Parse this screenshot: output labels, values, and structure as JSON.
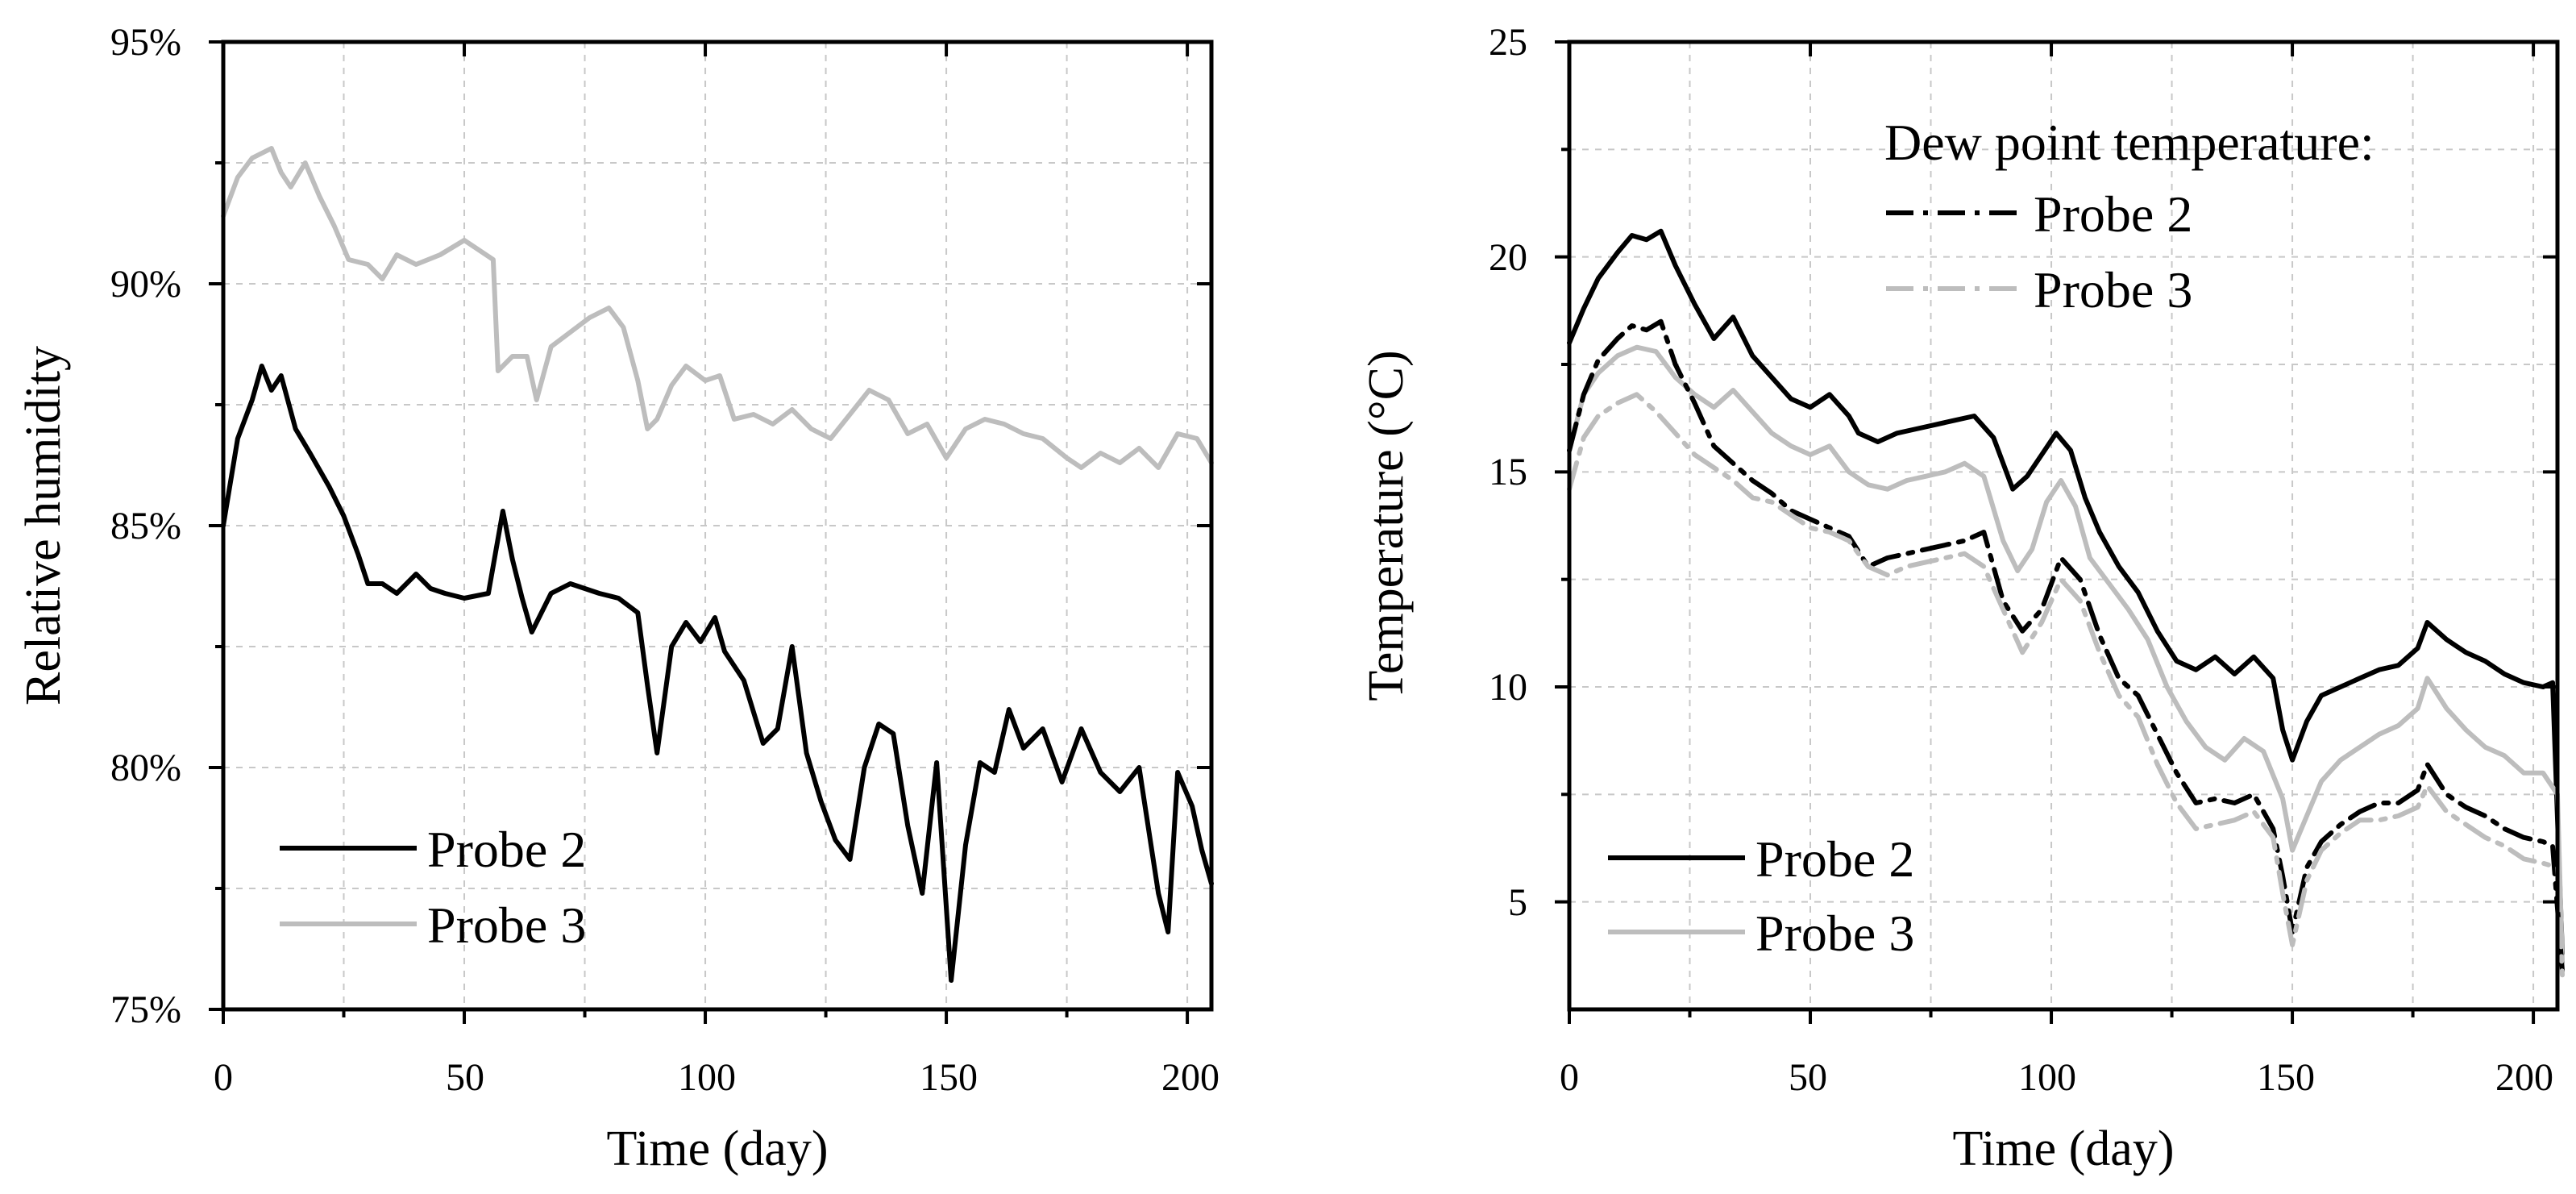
{
  "chart_data": [
    {
      "type": "line",
      "title": "",
      "xlabel": "Time (day)",
      "ylabel": "Relative humidity",
      "xlim": [
        0,
        205
      ],
      "ylim": [
        75,
        95
      ],
      "x_ticks": [
        "0",
        "50",
        "100",
        "150",
        "200"
      ],
      "y_ticks": [
        "75%",
        "80%",
        "85%",
        "90%",
        "95%"
      ],
      "grid": true,
      "legend_position": "bottom-left",
      "series": [
        {
          "name": "Probe 2",
          "color": "#000000",
          "style": "solid",
          "x": [
            0,
            3,
            6,
            8,
            10,
            12,
            15,
            18,
            22,
            25,
            28,
            30,
            33,
            36,
            40,
            43,
            46,
            50,
            55,
            58,
            60,
            62,
            64,
            68,
            72,
            78,
            82,
            86,
            88,
            90,
            93,
            96,
            99,
            102,
            104,
            108,
            112,
            115,
            118,
            121,
            124,
            127,
            130,
            133,
            136,
            139,
            142,
            145,
            148,
            151,
            154,
            157,
            160,
            163,
            166,
            170,
            174,
            178,
            182,
            186,
            190,
            194,
            196,
            198,
            201,
            203,
            205
          ],
          "y": [
            85.0,
            86.8,
            87.6,
            88.3,
            87.8,
            88.1,
            87.0,
            86.5,
            85.8,
            85.2,
            84.4,
            83.8,
            83.8,
            83.6,
            84.0,
            83.7,
            83.6,
            83.5,
            83.6,
            85.3,
            84.3,
            83.5,
            82.8,
            83.6,
            83.8,
            83.6,
            83.5,
            83.2,
            81.7,
            80.3,
            82.5,
            83.0,
            82.6,
            83.1,
            82.4,
            81.8,
            80.5,
            80.8,
            82.5,
            80.3,
            79.3,
            78.5,
            78.1,
            80.0,
            80.9,
            80.7,
            78.8,
            77.4,
            80.1,
            75.6,
            78.4,
            80.1,
            79.9,
            81.2,
            80.4,
            80.8,
            79.7,
            80.8,
            79.9,
            79.5,
            80.0,
            77.4,
            76.6,
            79.9,
            79.2,
            78.3,
            77.6
          ]
        },
        {
          "name": "Probe 3",
          "color": "#bdbdbd",
          "style": "solid",
          "x": [
            0,
            3,
            6,
            10,
            12,
            14,
            17,
            20,
            23,
            26,
            30,
            33,
            36,
            40,
            45,
            50,
            53,
            56,
            57,
            60,
            63,
            65,
            68,
            72,
            76,
            80,
            83,
            86,
            88,
            90,
            93,
            96,
            100,
            103,
            106,
            110,
            114,
            118,
            122,
            126,
            130,
            134,
            138,
            142,
            146,
            150,
            154,
            158,
            162,
            166,
            170,
            175,
            178,
            182,
            186,
            190,
            194,
            198,
            202,
            205
          ],
          "y": [
            91.4,
            92.2,
            92.6,
            92.8,
            92.3,
            92.0,
            92.5,
            91.8,
            91.2,
            90.5,
            90.4,
            90.1,
            90.6,
            90.4,
            90.6,
            90.9,
            90.7,
            90.5,
            88.2,
            88.5,
            88.5,
            87.6,
            88.7,
            89.0,
            89.3,
            89.5,
            89.1,
            88.0,
            87.0,
            87.2,
            87.9,
            88.3,
            88.0,
            88.1,
            87.2,
            87.3,
            87.1,
            87.4,
            87.0,
            86.8,
            87.3,
            87.8,
            87.6,
            86.9,
            87.1,
            86.4,
            87.0,
            87.2,
            87.1,
            86.9,
            86.8,
            86.4,
            86.2,
            86.5,
            86.3,
            86.6,
            86.2,
            86.9,
            86.8,
            86.3
          ]
        }
      ]
    },
    {
      "type": "line",
      "title": "",
      "xlabel": "Time (day)",
      "ylabel": "Temperature (°C)",
      "xlim": [
        0,
        205
      ],
      "ylim": [
        2.5,
        25
      ],
      "x_ticks": [
        "0",
        "50",
        "100",
        "150",
        "200"
      ],
      "y_ticks": [
        "5",
        "10",
        "15",
        "20",
        "25"
      ],
      "grid": true,
      "legend_position": "bottom-left",
      "annotation_legend_title": "Dew point temperature:",
      "series": [
        {
          "name": "Probe 2",
          "color": "#000000",
          "style": "solid",
          "x": [
            0,
            3,
            6,
            10,
            13,
            16,
            19,
            22,
            26,
            30,
            34,
            38,
            42,
            46,
            50,
            54,
            58,
            60,
            64,
            68,
            72,
            76,
            80,
            84,
            88,
            92,
            95,
            98,
            101,
            104,
            107,
            110,
            114,
            118,
            122,
            126,
            130,
            134,
            138,
            142,
            146,
            148,
            150,
            153,
            156,
            160,
            164,
            168,
            172,
            176,
            178,
            182,
            186,
            190,
            194,
            198,
            202,
            204,
            206
          ],
          "y": [
            18.0,
            18.8,
            19.5,
            20.1,
            20.5,
            20.4,
            20.6,
            19.8,
            18.9,
            18.1,
            18.6,
            17.7,
            17.2,
            16.7,
            16.5,
            16.8,
            16.3,
            15.9,
            15.7,
            15.9,
            16.0,
            16.1,
            16.2,
            16.3,
            15.8,
            14.6,
            14.9,
            15.4,
            15.9,
            15.5,
            14.4,
            13.6,
            12.8,
            12.2,
            11.3,
            10.6,
            10.4,
            10.7,
            10.3,
            10.7,
            10.2,
            9.0,
            8.3,
            9.2,
            9.8,
            10.0,
            10.2,
            10.4,
            10.5,
            10.9,
            11.5,
            11.1,
            10.8,
            10.6,
            10.3,
            10.1,
            10.0,
            10.1,
            3.8
          ]
        },
        {
          "name": "Probe 3",
          "color": "#bdbdbd",
          "style": "solid",
          "x": [
            0,
            3,
            6,
            10,
            14,
            18,
            22,
            26,
            30,
            34,
            38,
            42,
            46,
            50,
            54,
            58,
            62,
            66,
            70,
            74,
            78,
            82,
            86,
            90,
            93,
            96,
            99,
            102,
            105,
            108,
            112,
            116,
            120,
            124,
            128,
            132,
            136,
            140,
            144,
            148,
            150,
            153,
            156,
            160,
            164,
            168,
            172,
            176,
            178,
            182,
            186,
            190,
            194,
            198,
            202,
            205,
            206
          ],
          "y": [
            15.5,
            16.8,
            17.3,
            17.7,
            17.9,
            17.8,
            17.2,
            16.8,
            16.5,
            16.9,
            16.4,
            15.9,
            15.6,
            15.4,
            15.6,
            15.0,
            14.7,
            14.6,
            14.8,
            14.9,
            15.0,
            15.2,
            14.9,
            13.4,
            12.7,
            13.2,
            14.3,
            14.8,
            14.2,
            13.0,
            12.4,
            11.8,
            11.1,
            10.0,
            9.2,
            8.6,
            8.3,
            8.8,
            8.5,
            7.4,
            6.2,
            7.0,
            7.8,
            8.3,
            8.6,
            8.9,
            9.1,
            9.5,
            10.2,
            9.5,
            9.0,
            8.6,
            8.4,
            8.0,
            8.0,
            7.5,
            3.6
          ]
        },
        {
          "name": "Dew point Probe 2",
          "legend_label": "Probe 2",
          "color": "#000000",
          "style": "dashdot",
          "x": [
            0,
            3,
            6,
            10,
            13,
            16,
            19,
            22,
            26,
            30,
            34,
            38,
            42,
            46,
            50,
            54,
            58,
            62,
            66,
            70,
            74,
            78,
            82,
            86,
            90,
            94,
            98,
            102,
            106,
            110,
            114,
            118,
            122,
            126,
            130,
            134,
            138,
            142,
            146,
            148,
            150,
            153,
            156,
            160,
            164,
            168,
            172,
            176,
            178,
            182,
            186,
            190,
            194,
            198,
            202,
            204,
            206
          ],
          "y": [
            15.5,
            16.8,
            17.6,
            18.1,
            18.4,
            18.3,
            18.5,
            17.5,
            16.6,
            15.6,
            15.2,
            14.8,
            14.5,
            14.1,
            13.9,
            13.7,
            13.5,
            12.8,
            13.0,
            13.1,
            13.2,
            13.3,
            13.4,
            13.6,
            12.0,
            11.3,
            11.8,
            13.0,
            12.5,
            11.2,
            10.2,
            9.8,
            8.9,
            8.0,
            7.3,
            7.4,
            7.3,
            7.5,
            6.7,
            5.6,
            4.3,
            5.8,
            6.4,
            6.8,
            7.1,
            7.3,
            7.3,
            7.6,
            8.2,
            7.5,
            7.2,
            7.0,
            6.7,
            6.5,
            6.4,
            6.3,
            3.4
          ]
        },
        {
          "name": "Dew point Probe 3",
          "legend_label": "Probe 3",
          "color": "#bdbdbd",
          "style": "dashdot",
          "x": [
            0,
            3,
            6,
            10,
            14,
            18,
            22,
            26,
            30,
            34,
            38,
            42,
            46,
            50,
            54,
            58,
            62,
            66,
            70,
            74,
            78,
            82,
            86,
            90,
            94,
            98,
            102,
            106,
            110,
            114,
            118,
            122,
            126,
            130,
            134,
            138,
            142,
            146,
            148,
            150,
            153,
            156,
            160,
            164,
            168,
            172,
            176,
            178,
            182,
            186,
            190,
            194,
            198,
            202,
            205,
            206
          ],
          "y": [
            14.6,
            15.8,
            16.3,
            16.6,
            16.8,
            16.4,
            15.9,
            15.4,
            15.1,
            14.8,
            14.4,
            14.3,
            14.0,
            13.7,
            13.6,
            13.4,
            12.8,
            12.6,
            12.8,
            12.9,
            13.0,
            13.1,
            12.8,
            11.8,
            10.8,
            11.5,
            12.5,
            12.0,
            10.8,
            9.8,
            9.3,
            8.2,
            7.3,
            6.7,
            6.8,
            6.9,
            7.1,
            6.5,
            5.2,
            4.0,
            5.5,
            6.2,
            6.6,
            6.9,
            6.9,
            7.0,
            7.2,
            7.7,
            7.1,
            6.8,
            6.5,
            6.3,
            6.0,
            5.9,
            5.8,
            3.3
          ]
        }
      ]
    }
  ]
}
